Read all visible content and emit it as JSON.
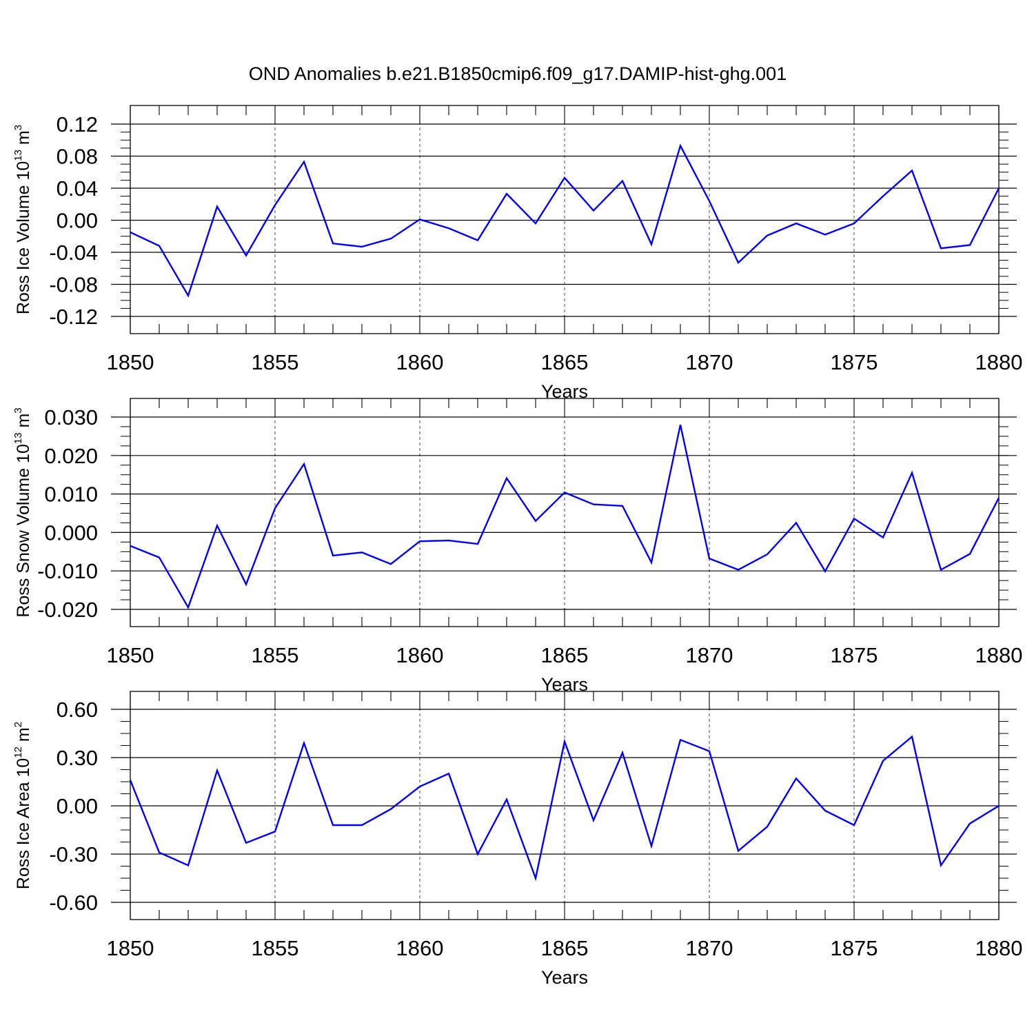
{
  "title": "OND Anomalies b.e21.B1850cmip6.f09_g17.DAMIP-hist-ghg.001",
  "colors": {
    "line": "#0000ff",
    "axis": "#000000"
  },
  "chart_data": [
    {
      "type": "line",
      "x": [
        1850,
        1851,
        1852,
        1853,
        1854,
        1855,
        1856,
        1857,
        1858,
        1859,
        1860,
        1861,
        1862,
        1863,
        1864,
        1865,
        1866,
        1867,
        1868,
        1869,
        1870,
        1871,
        1872,
        1873,
        1874,
        1875,
        1876,
        1877,
        1878,
        1879,
        1880
      ],
      "series": [
        {
          "values": [
            -0.015,
            -0.032,
            -0.094,
            0.017,
            -0.044,
            0.019,
            0.073,
            -0.029,
            -0.033,
            -0.023,
            0.001,
            -0.01,
            -0.025,
            0.033,
            -0.004,
            0.053,
            0.012,
            0.049,
            -0.03,
            0.093,
            0.024,
            -0.053,
            -0.019,
            -0.004,
            -0.018,
            -0.004,
            0.03,
            0.062,
            -0.035,
            -0.031,
            0.04
          ]
        }
      ],
      "xlabel": "Years",
      "ylabel": {
        "text": "Ross Ice Volume 10",
        "sup": "13",
        "unit": " m",
        "unit_sup": "3"
      },
      "xlim": [
        1850,
        1880
      ],
      "ylim": [
        -0.12,
        0.12
      ],
      "xticks": [
        "1850",
        "1855",
        "1860",
        "1865",
        "1870",
        "1875",
        "1880"
      ],
      "yticks": [
        "0.12",
        "0.08",
        "0.04",
        "0.00",
        "-0.04",
        "-0.08",
        "-0.12"
      ],
      "ytick_values": [
        0.12,
        0.08,
        0.04,
        0.0,
        -0.04,
        -0.08,
        -0.12
      ],
      "grid": "dashed vertical at major x ticks"
    },
    {
      "type": "line",
      "x": [
        1850,
        1851,
        1852,
        1853,
        1854,
        1855,
        1856,
        1857,
        1858,
        1859,
        1860,
        1861,
        1862,
        1863,
        1864,
        1865,
        1866,
        1867,
        1868,
        1869,
        1870,
        1871,
        1872,
        1873,
        1874,
        1875,
        1876,
        1877,
        1878,
        1879,
        1880
      ],
      "series": [
        {
          "values": [
            -0.0035,
            -0.0065,
            -0.0195,
            0.0018,
            -0.0135,
            0.0063,
            0.0178,
            -0.006,
            -0.0052,
            -0.0082,
            -0.0023,
            -0.0021,
            -0.003,
            0.0141,
            0.003,
            0.0104,
            0.0073,
            0.0069,
            -0.0078,
            0.028,
            -0.0068,
            -0.0097,
            -0.0057,
            0.0025,
            -0.0101,
            0.0036,
            -0.0013,
            0.0155,
            -0.0097,
            -0.0056,
            0.009
          ]
        }
      ],
      "xlabel": "Years",
      "ylabel": {
        "text": "Ross Snow Volume 10",
        "sup": "13",
        "unit": " m",
        "unit_sup": "3"
      },
      "xlim": [
        1850,
        1880
      ],
      "ylim": [
        -0.02,
        0.03
      ],
      "xticks": [
        "1850",
        "1855",
        "1860",
        "1865",
        "1870",
        "1875",
        "1880"
      ],
      "yticks": [
        "0.030",
        "0.020",
        "0.010",
        "0.000",
        "-0.010",
        "-0.020"
      ],
      "ytick_values": [
        0.03,
        0.02,
        0.01,
        0.0,
        -0.01,
        -0.02
      ],
      "grid": "dashed vertical at major x ticks"
    },
    {
      "type": "line",
      "x": [
        1850,
        1851,
        1852,
        1853,
        1854,
        1855,
        1856,
        1857,
        1858,
        1859,
        1860,
        1861,
        1862,
        1863,
        1864,
        1865,
        1866,
        1867,
        1868,
        1869,
        1870,
        1871,
        1872,
        1873,
        1874,
        1875,
        1876,
        1877,
        1878,
        1879,
        1880
      ],
      "series": [
        {
          "values": [
            0.16,
            -0.29,
            -0.37,
            0.22,
            -0.23,
            -0.16,
            0.39,
            -0.12,
            -0.12,
            -0.02,
            0.12,
            0.2,
            -0.3,
            0.04,
            -0.45,
            0.4,
            -0.09,
            0.33,
            -0.25,
            0.41,
            0.34,
            -0.28,
            -0.13,
            0.17,
            -0.03,
            -0.12,
            0.28,
            0.43,
            -0.37,
            -0.11,
            0.0
          ]
        }
      ],
      "xlabel": "Years",
      "ylabel": {
        "text": "Ross Ice Area 10",
        "sup": "12",
        "unit": " m",
        "unit_sup": "2"
      },
      "xlim": [
        1850,
        1880
      ],
      "ylim": [
        -0.6,
        0.6
      ],
      "xticks": [
        "1850",
        "1855",
        "1860",
        "1865",
        "1870",
        "1875",
        "1880"
      ],
      "yticks": [
        "0.60",
        "0.30",
        "0.00",
        "-0.30",
        "-0.60"
      ],
      "ytick_values": [
        0.6,
        0.3,
        0.0,
        -0.3,
        -0.6
      ],
      "grid": "dashed vertical at major x ticks"
    }
  ]
}
